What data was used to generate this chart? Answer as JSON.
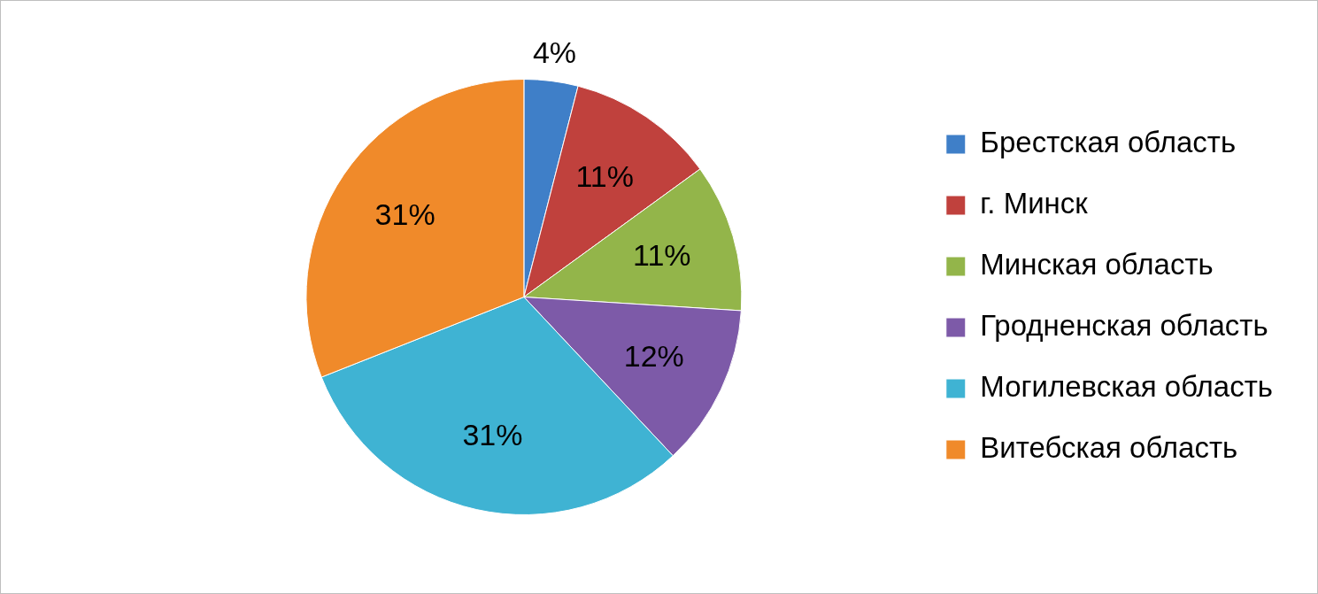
{
  "chart_data": {
    "type": "pie",
    "categories": [
      "Брестская область",
      "г. Минск",
      "Минская область",
      "Гродненская область",
      "Могилевская область",
      "Витебская область"
    ],
    "values": [
      4,
      11,
      11,
      12,
      31,
      31
    ],
    "colors": [
      "#3f7fc8",
      "#c0413d",
      "#93b54a",
      "#7d5aa8",
      "#3fb3d3",
      "#f08a2a"
    ],
    "value_labels": [
      "4%",
      "11%",
      "11%",
      "12%",
      "31%",
      "31%"
    ],
    "legend": "right"
  }
}
